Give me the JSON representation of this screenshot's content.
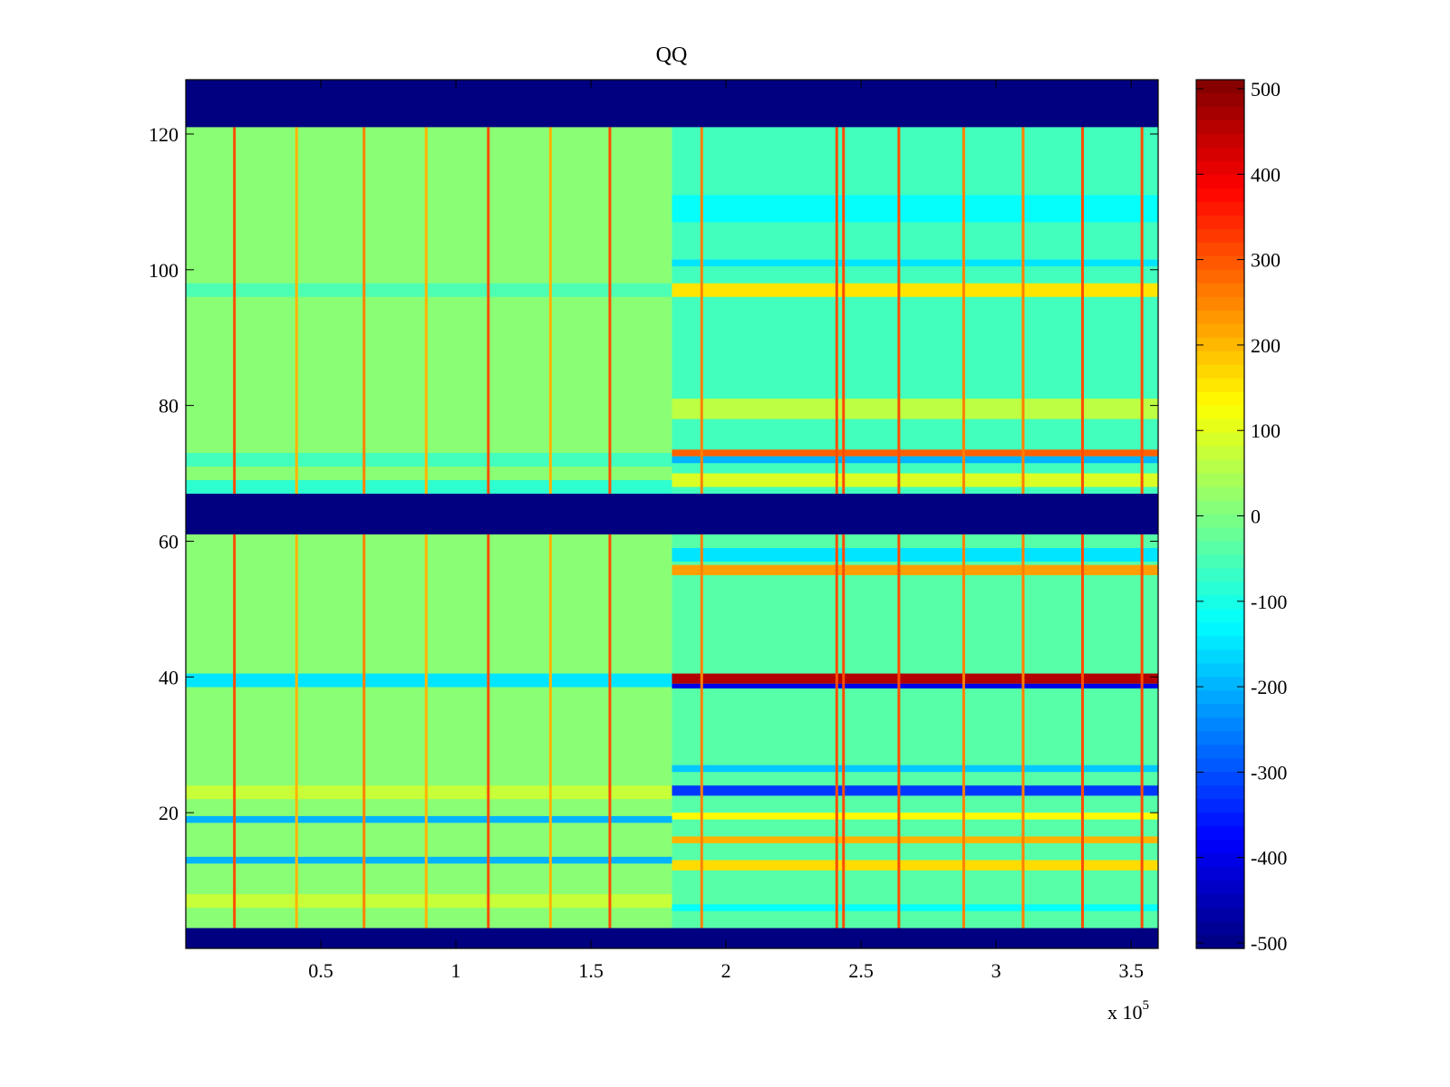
{
  "chart_data": {
    "type": "heatmap",
    "title": "QQ",
    "xlabel": "",
    "ylabel": "",
    "x_multiplier": "x 10",
    "x_multiplier_exponent": "5",
    "xlim": [
      0,
      360000
    ],
    "ylim": [
      0,
      128
    ],
    "x_ticks": [
      {
        "value": 50000,
        "label": "0.5"
      },
      {
        "value": 100000,
        "label": "1"
      },
      {
        "value": 150000,
        "label": "1.5"
      },
      {
        "value": 200000,
        "label": "2"
      },
      {
        "value": 250000,
        "label": "2.5"
      },
      {
        "value": 300000,
        "label": "3"
      },
      {
        "value": 350000,
        "label": "3.5"
      }
    ],
    "y_ticks": [
      {
        "value": 20,
        "label": "20"
      },
      {
        "value": 40,
        "label": "40"
      },
      {
        "value": 60,
        "label": "60"
      },
      {
        "value": 80,
        "label": "80"
      },
      {
        "value": 100,
        "label": "100"
      },
      {
        "value": 120,
        "label": "120"
      }
    ],
    "colormap": "jet",
    "clim": [
      -500,
      500
    ],
    "colorbar_ticks": [
      {
        "value": 500,
        "label": "500"
      },
      {
        "value": 400,
        "label": "400"
      },
      {
        "value": 300,
        "label": "300"
      },
      {
        "value": 200,
        "label": "200"
      },
      {
        "value": 100,
        "label": "100"
      },
      {
        "value": 0,
        "label": "0"
      },
      {
        "value": -100,
        "label": "-100"
      },
      {
        "value": -200,
        "label": "-200"
      },
      {
        "value": -300,
        "label": "-300"
      },
      {
        "value": -400,
        "label": "-400"
      },
      {
        "value": -500,
        "label": "-500"
      }
    ],
    "regions": [
      {
        "x": [
          0,
          360000
        ],
        "y": [
          121,
          128
        ],
        "value": -500
      },
      {
        "x": [
          0,
          360000
        ],
        "y": [
          61,
          67
        ],
        "value": -500
      },
      {
        "x": [
          0,
          360000
        ],
        "y": [
          0,
          3
        ],
        "value": -500
      },
      {
        "x": [
          0,
          180000
        ],
        "y": [
          67,
          121
        ],
        "value": 10
      },
      {
        "x": [
          0,
          180000
        ],
        "y": [
          3,
          61
        ],
        "value": 10
      },
      {
        "x": [
          180000,
          360000
        ],
        "y": [
          67,
          121
        ],
        "value": -60
      },
      {
        "x": [
          180000,
          360000
        ],
        "y": [
          3,
          61
        ],
        "value": -40
      }
    ],
    "bands": [
      {
        "x": [
          0,
          180000
        ],
        "y": [
          96,
          98
        ],
        "value": -50
      },
      {
        "x": [
          0,
          180000
        ],
        "y": [
          71,
          73
        ],
        "value": -60
      },
      {
        "x": [
          0,
          180000
        ],
        "y": [
          67,
          69
        ],
        "value": -80
      },
      {
        "x": [
          0,
          180000
        ],
        "y": [
          38.5,
          40.5
        ],
        "value": -150
      },
      {
        "x": [
          0,
          180000
        ],
        "y": [
          22,
          24
        ],
        "value": 70
      },
      {
        "x": [
          0,
          180000
        ],
        "y": [
          18.5,
          19.5
        ],
        "value": -200
      },
      {
        "x": [
          0,
          180000
        ],
        "y": [
          12.5,
          13.5
        ],
        "value": -200
      },
      {
        "x": [
          0,
          180000
        ],
        "y": [
          6,
          8
        ],
        "value": 70
      },
      {
        "x": [
          180000,
          360000
        ],
        "y": [
          107,
          111
        ],
        "value": -120
      },
      {
        "x": [
          180000,
          360000
        ],
        "y": [
          96,
          98
        ],
        "value": 150
      },
      {
        "x": [
          180000,
          360000
        ],
        "y": [
          100.5,
          101.5
        ],
        "value": -150
      },
      {
        "x": [
          180000,
          360000
        ],
        "y": [
          78,
          81
        ],
        "value": 60
      },
      {
        "x": [
          180000,
          360000
        ],
        "y": [
          72.5,
          73.5
        ],
        "value": 280
      },
      {
        "x": [
          180000,
          360000
        ],
        "y": [
          71.5,
          72.5
        ],
        "value": -200
      },
      {
        "x": [
          180000,
          360000
        ],
        "y": [
          68,
          70
        ],
        "value": 90
      },
      {
        "x": [
          180000,
          360000
        ],
        "y": [
          57,
          59
        ],
        "value": -150
      },
      {
        "x": [
          180000,
          360000
        ],
        "y": [
          55,
          56.5
        ],
        "value": 220
      },
      {
        "x": [
          180000,
          360000
        ],
        "y": [
          39,
          40.5
        ],
        "value": 450
      },
      {
        "x": [
          180000,
          360000
        ],
        "y": [
          38.3,
          39
        ],
        "value": -400
      },
      {
        "x": [
          180000,
          360000
        ],
        "y": [
          26,
          27
        ],
        "value": -180
      },
      {
        "x": [
          180000,
          360000
        ],
        "y": [
          22.5,
          24
        ],
        "value": -320
      },
      {
        "x": [
          180000,
          360000
        ],
        "y": [
          19,
          20
        ],
        "value": 130
      },
      {
        "x": [
          180000,
          360000
        ],
        "y": [
          15.5,
          16.5
        ],
        "value": 200
      },
      {
        "x": [
          180000,
          360000
        ],
        "y": [
          11.5,
          13
        ],
        "value": 160
      },
      {
        "x": [
          180000,
          360000
        ],
        "y": [
          5.5,
          6.5
        ],
        "value": -120
      }
    ],
    "vertical_spikes": [
      {
        "x": 18000,
        "value": 300
      },
      {
        "x": 41000,
        "value": 200
      },
      {
        "x": 66000,
        "value": 250
      },
      {
        "x": 89000,
        "value": 200
      },
      {
        "x": 112000,
        "value": 300
      },
      {
        "x": 135000,
        "value": 200
      },
      {
        "x": 157000,
        "value": 300
      },
      {
        "x": 191000,
        "value": 250
      },
      {
        "x": 241000,
        "value": 300
      },
      {
        "x": 243500,
        "value": 300
      },
      {
        "x": 264000,
        "value": 300
      },
      {
        "x": 288000,
        "value": 250
      },
      {
        "x": 310000,
        "value": 250
      },
      {
        "x": 332000,
        "value": 300
      },
      {
        "x": 354000,
        "value": 300
      }
    ]
  }
}
